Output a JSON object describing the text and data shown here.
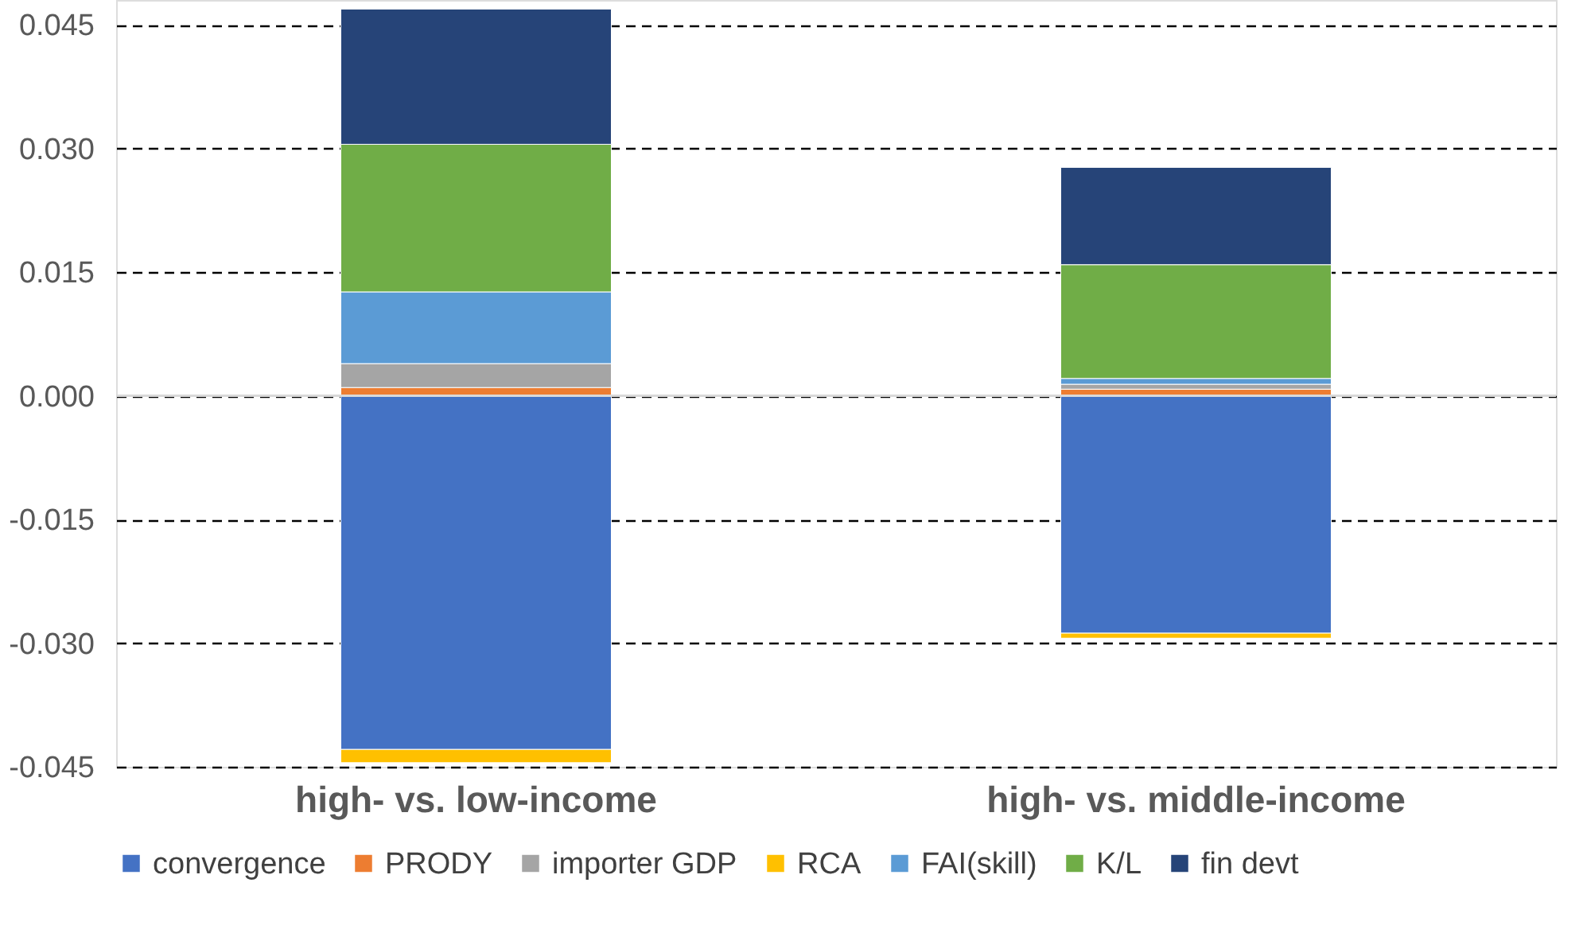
{
  "chart_data": {
    "type": "bar",
    "stacked": true,
    "categories": [
      "high- vs. low-income",
      "high- vs. middle-income"
    ],
    "series": [
      {
        "name": "convergence",
        "color": "#4472c4",
        "values": [
          -0.0429,
          -0.0288
        ]
      },
      {
        "name": "PRODY",
        "color": "#ed7d31",
        "values": [
          0.001,
          0.0008
        ]
      },
      {
        "name": "importer GDP",
        "color": "#a5a5a5",
        "values": [
          0.0029,
          0.0006
        ]
      },
      {
        "name": "RCA",
        "color": "#ffc000",
        "values": [
          -0.0016,
          -0.0006
        ]
      },
      {
        "name": "FAI(skill)",
        "color": "#5b9bd5",
        "values": [
          0.0087,
          0.0007
        ]
      },
      {
        "name": "K/L",
        "color": "#70ad47",
        "values": [
          0.0179,
          0.0138
        ]
      },
      {
        "name": "fin devt",
        "color": "#264478",
        "values": [
          0.0164,
          0.0118
        ]
      }
    ],
    "ylim": [
      -0.045,
      0.048
    ],
    "yticks": [
      -0.045,
      {
        "value": -0.03,
        "label": "-0.030"
      },
      -0.015,
      {
        "value": 0,
        "label": "0.000"
      },
      0.015,
      {
        "value": 0.03,
        "label": "0.030"
      },
      0.045
    ],
    "grid": "y",
    "legend": "bottom"
  }
}
